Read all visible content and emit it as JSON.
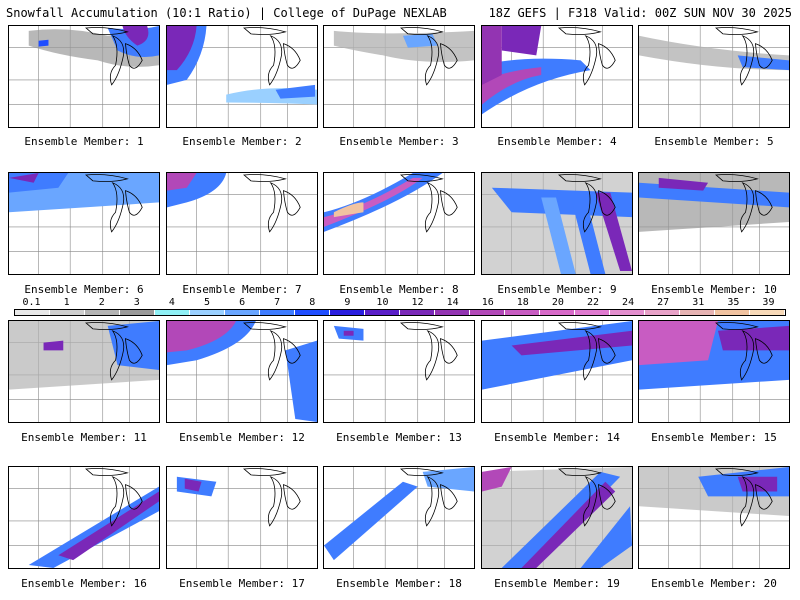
{
  "header": {
    "left_title": "Snowfall Accumulation (10:1 Ratio) | College of DuPage NEXLAB",
    "right_title": "18Z GEFS | F318 Valid: 00Z SUN NOV 30 2025"
  },
  "colorbar": {
    "labels": [
      "0.1",
      "1",
      "2",
      "3",
      "4",
      "5",
      "6",
      "7",
      "8",
      "9",
      "10",
      "12",
      "14",
      "16",
      "18",
      "20",
      "22",
      "24",
      "27",
      "31",
      "35",
      "39"
    ],
    "colors": [
      "#e8e8e8",
      "#cfcfcf",
      "#b4b4b4",
      "#9a9a9a",
      "#8ff0f5",
      "#9ad0ff",
      "#6aa6ff",
      "#3f7cff",
      "#1f4dff",
      "#2a1ee0",
      "#5a1ec8",
      "#7a28b8",
      "#9334b2",
      "#b248b8",
      "#c85cc2",
      "#d86ac9",
      "#e07ad0",
      "#e48fcf",
      "#e8a2c8",
      "#e6b3b3",
      "#f1c3a1",
      "#f7d9b8"
    ]
  },
  "members": [
    {
      "label": "Ensemble Member: 1"
    },
    {
      "label": "Ensemble Member: 2"
    },
    {
      "label": "Ensemble Member: 3"
    },
    {
      "label": "Ensemble Member: 4"
    },
    {
      "label": "Ensemble Member: 5"
    },
    {
      "label": "Ensemble Member: 6"
    },
    {
      "label": "Ensemble Member: 7"
    },
    {
      "label": "Ensemble Member: 8"
    },
    {
      "label": "Ensemble Member: 9"
    },
    {
      "label": "Ensemble Member: 10"
    },
    {
      "label": "Ensemble Member: 11"
    },
    {
      "label": "Ensemble Member: 12"
    },
    {
      "label": "Ensemble Member: 13"
    },
    {
      "label": "Ensemble Member: 14"
    },
    {
      "label": "Ensemble Member: 15"
    },
    {
      "label": "Ensemble Member: 16"
    },
    {
      "label": "Ensemble Member: 17"
    },
    {
      "label": "Ensemble Member: 18"
    },
    {
      "label": "Ensemble Member: 19"
    },
    {
      "label": "Ensemble Member: 20"
    }
  ]
}
